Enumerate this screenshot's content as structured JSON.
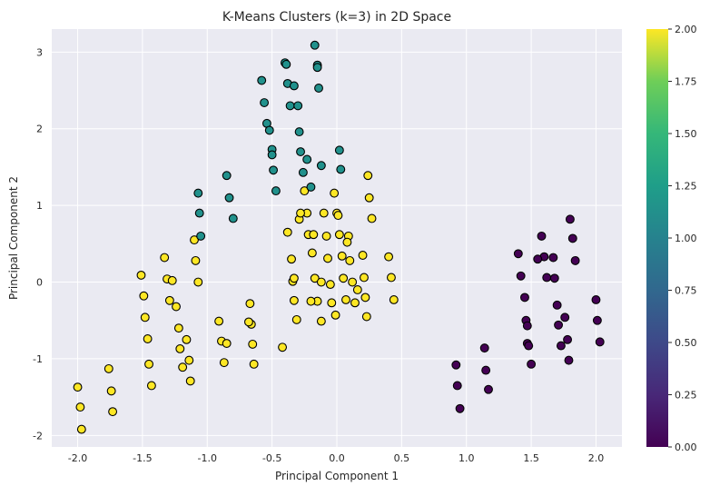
{
  "chart_data": {
    "type": "scatter",
    "title": "K-Means Clusters (k=3) in 2D Space",
    "xlabel": "Principal Component 1",
    "ylabel": "Principal Component 2",
    "xlim": [
      -2.2,
      2.2
    ],
    "ylim": [
      -2.15,
      3.3
    ],
    "xticks": [
      "-2.0",
      "-1.5",
      "-1.0",
      "-0.5",
      "0.0",
      "0.5",
      "1.0",
      "1.5",
      "2.0"
    ],
    "yticks": [
      "-2",
      "-1",
      "0",
      "1",
      "2",
      "3"
    ],
    "grid": true,
    "colorbar": {
      "range": [
        0,
        2
      ],
      "ticks": [
        "0.00",
        "0.25",
        "0.50",
        "0.75",
        "1.00",
        "1.25",
        "1.50",
        "1.75",
        "2.00"
      ],
      "colormap": "viridis"
    },
    "colors": {
      "cluster_0": "#440154",
      "cluster_1": "#21918c",
      "cluster_2": "#fde725",
      "background": "#eaeaf2",
      "grid": "#ffffff",
      "edge": "#000000"
    },
    "clusters": [
      {
        "label": 0,
        "points": [
          [
            0.92,
            -1.08
          ],
          [
            0.93,
            -1.35
          ],
          [
            0.95,
            -1.65
          ],
          [
            1.14,
            -0.86
          ],
          [
            1.15,
            -1.15
          ],
          [
            1.17,
            -1.4
          ],
          [
            1.4,
            0.37
          ],
          [
            1.42,
            0.08
          ],
          [
            1.45,
            -0.2
          ],
          [
            1.46,
            -0.5
          ],
          [
            1.47,
            -0.8
          ],
          [
            1.5,
            -1.07
          ],
          [
            1.58,
            0.6
          ],
          [
            1.6,
            0.33
          ],
          [
            1.62,
            0.06
          ],
          [
            1.67,
            0.32
          ],
          [
            1.68,
            0.05
          ],
          [
            1.7,
            -0.3
          ],
          [
            1.71,
            -0.56
          ],
          [
            1.73,
            -0.83
          ],
          [
            1.76,
            -0.46
          ],
          [
            1.78,
            -0.75
          ],
          [
            1.79,
            -1.02
          ],
          [
            1.8,
            0.82
          ],
          [
            1.82,
            0.57
          ],
          [
            1.84,
            0.28
          ],
          [
            2.0,
            -0.23
          ],
          [
            2.01,
            -0.5
          ],
          [
            2.03,
            -0.78
          ],
          [
            1.55,
            0.3
          ],
          [
            1.47,
            -0.57
          ],
          [
            1.48,
            -0.83
          ]
        ]
      },
      {
        "label": 1,
        "points": [
          [
            -1.07,
            1.16
          ],
          [
            -1.06,
            0.9
          ],
          [
            -1.05,
            0.6
          ],
          [
            -0.85,
            1.39
          ],
          [
            -0.83,
            1.1
          ],
          [
            -0.8,
            0.83
          ],
          [
            -0.58,
            2.63
          ],
          [
            -0.56,
            2.34
          ],
          [
            -0.54,
            2.07
          ],
          [
            -0.52,
            1.98
          ],
          [
            -0.5,
            1.73
          ],
          [
            -0.49,
            1.46
          ],
          [
            -0.47,
            1.19
          ],
          [
            -0.4,
            2.86
          ],
          [
            -0.38,
            2.59
          ],
          [
            -0.36,
            2.3
          ],
          [
            -0.33,
            2.56
          ],
          [
            -0.3,
            2.3
          ],
          [
            -0.29,
            1.96
          ],
          [
            -0.28,
            1.7
          ],
          [
            -0.26,
            1.43
          ],
          [
            -0.23,
            1.6
          ],
          [
            -0.2,
            1.24
          ],
          [
            -0.17,
            3.09
          ],
          [
            -0.15,
            2.83
          ],
          [
            -0.14,
            2.53
          ],
          [
            -0.12,
            1.52
          ],
          [
            0.02,
            1.72
          ],
          [
            0.03,
            1.47
          ],
          [
            -0.5,
            1.66
          ],
          [
            -0.39,
            2.84
          ],
          [
            -0.15,
            2.8
          ]
        ]
      },
      {
        "label": 2,
        "points": [
          [
            -2.0,
            -1.37
          ],
          [
            -1.98,
            -1.63
          ],
          [
            -1.97,
            -1.92
          ],
          [
            -1.76,
            -1.13
          ],
          [
            -1.74,
            -1.42
          ],
          [
            -1.73,
            -1.69
          ],
          [
            -1.51,
            0.09
          ],
          [
            -1.49,
            -0.18
          ],
          [
            -1.48,
            -0.46
          ],
          [
            -1.46,
            -0.74
          ],
          [
            -1.45,
            -1.07
          ],
          [
            -1.43,
            -1.35
          ],
          [
            -1.33,
            0.32
          ],
          [
            -1.31,
            0.04
          ],
          [
            -1.29,
            -0.24
          ],
          [
            -1.27,
            0.02
          ],
          [
            -1.24,
            -0.32
          ],
          [
            -1.22,
            -0.6
          ],
          [
            -1.21,
            -0.87
          ],
          [
            -1.19,
            -1.11
          ],
          [
            -1.16,
            -0.75
          ],
          [
            -1.14,
            -1.02
          ],
          [
            -1.13,
            -1.29
          ],
          [
            -1.1,
            0.55
          ],
          [
            -1.09,
            0.28
          ],
          [
            -1.07,
            0.0
          ],
          [
            -0.91,
            -0.51
          ],
          [
            -0.89,
            -0.77
          ],
          [
            -0.87,
            -1.05
          ],
          [
            -0.85,
            -0.8
          ],
          [
            -0.67,
            -0.28
          ],
          [
            -0.66,
            -0.55
          ],
          [
            -0.65,
            -0.81
          ],
          [
            -0.64,
            -1.07
          ],
          [
            -0.68,
            -0.52
          ],
          [
            -0.42,
            -0.85
          ],
          [
            -0.38,
            0.65
          ],
          [
            -0.35,
            0.3
          ],
          [
            -0.34,
            0.01
          ],
          [
            -0.33,
            -0.24
          ],
          [
            -0.31,
            -0.49
          ],
          [
            -0.29,
            0.82
          ],
          [
            -0.25,
            1.19
          ],
          [
            -0.23,
            0.9
          ],
          [
            -0.22,
            0.62
          ],
          [
            -0.19,
            0.38
          ],
          [
            -0.17,
            0.05
          ],
          [
            -0.15,
            -0.25
          ],
          [
            -0.12,
            -0.51
          ],
          [
            -0.1,
            0.9
          ],
          [
            -0.08,
            0.6
          ],
          [
            -0.07,
            0.31
          ],
          [
            -0.05,
            -0.03
          ],
          [
            -0.04,
            -0.27
          ],
          [
            -0.02,
            1.16
          ],
          [
            0.0,
            0.9
          ],
          [
            0.02,
            0.62
          ],
          [
            0.04,
            0.34
          ],
          [
            0.05,
            0.05
          ],
          [
            0.07,
            -0.23
          ],
          [
            0.09,
            0.6
          ],
          [
            0.1,
            0.28
          ],
          [
            0.12,
            0.0
          ],
          [
            0.14,
            -0.27
          ],
          [
            0.2,
            0.35
          ],
          [
            0.21,
            0.06
          ],
          [
            0.22,
            -0.2
          ],
          [
            0.23,
            -0.45
          ],
          [
            0.24,
            1.39
          ],
          [
            0.25,
            1.1
          ],
          [
            0.27,
            0.83
          ],
          [
            0.4,
            0.33
          ],
          [
            0.42,
            0.06
          ],
          [
            0.44,
            -0.23
          ],
          [
            -0.01,
            -0.43
          ],
          [
            -0.2,
            -0.25
          ],
          [
            -0.12,
            0.0
          ],
          [
            0.16,
            -0.1
          ],
          [
            -0.28,
            0.9
          ],
          [
            0.01,
            0.87
          ],
          [
            -0.18,
            0.62
          ],
          [
            -0.33,
            0.05
          ],
          [
            0.08,
            0.52
          ]
        ]
      }
    ]
  }
}
